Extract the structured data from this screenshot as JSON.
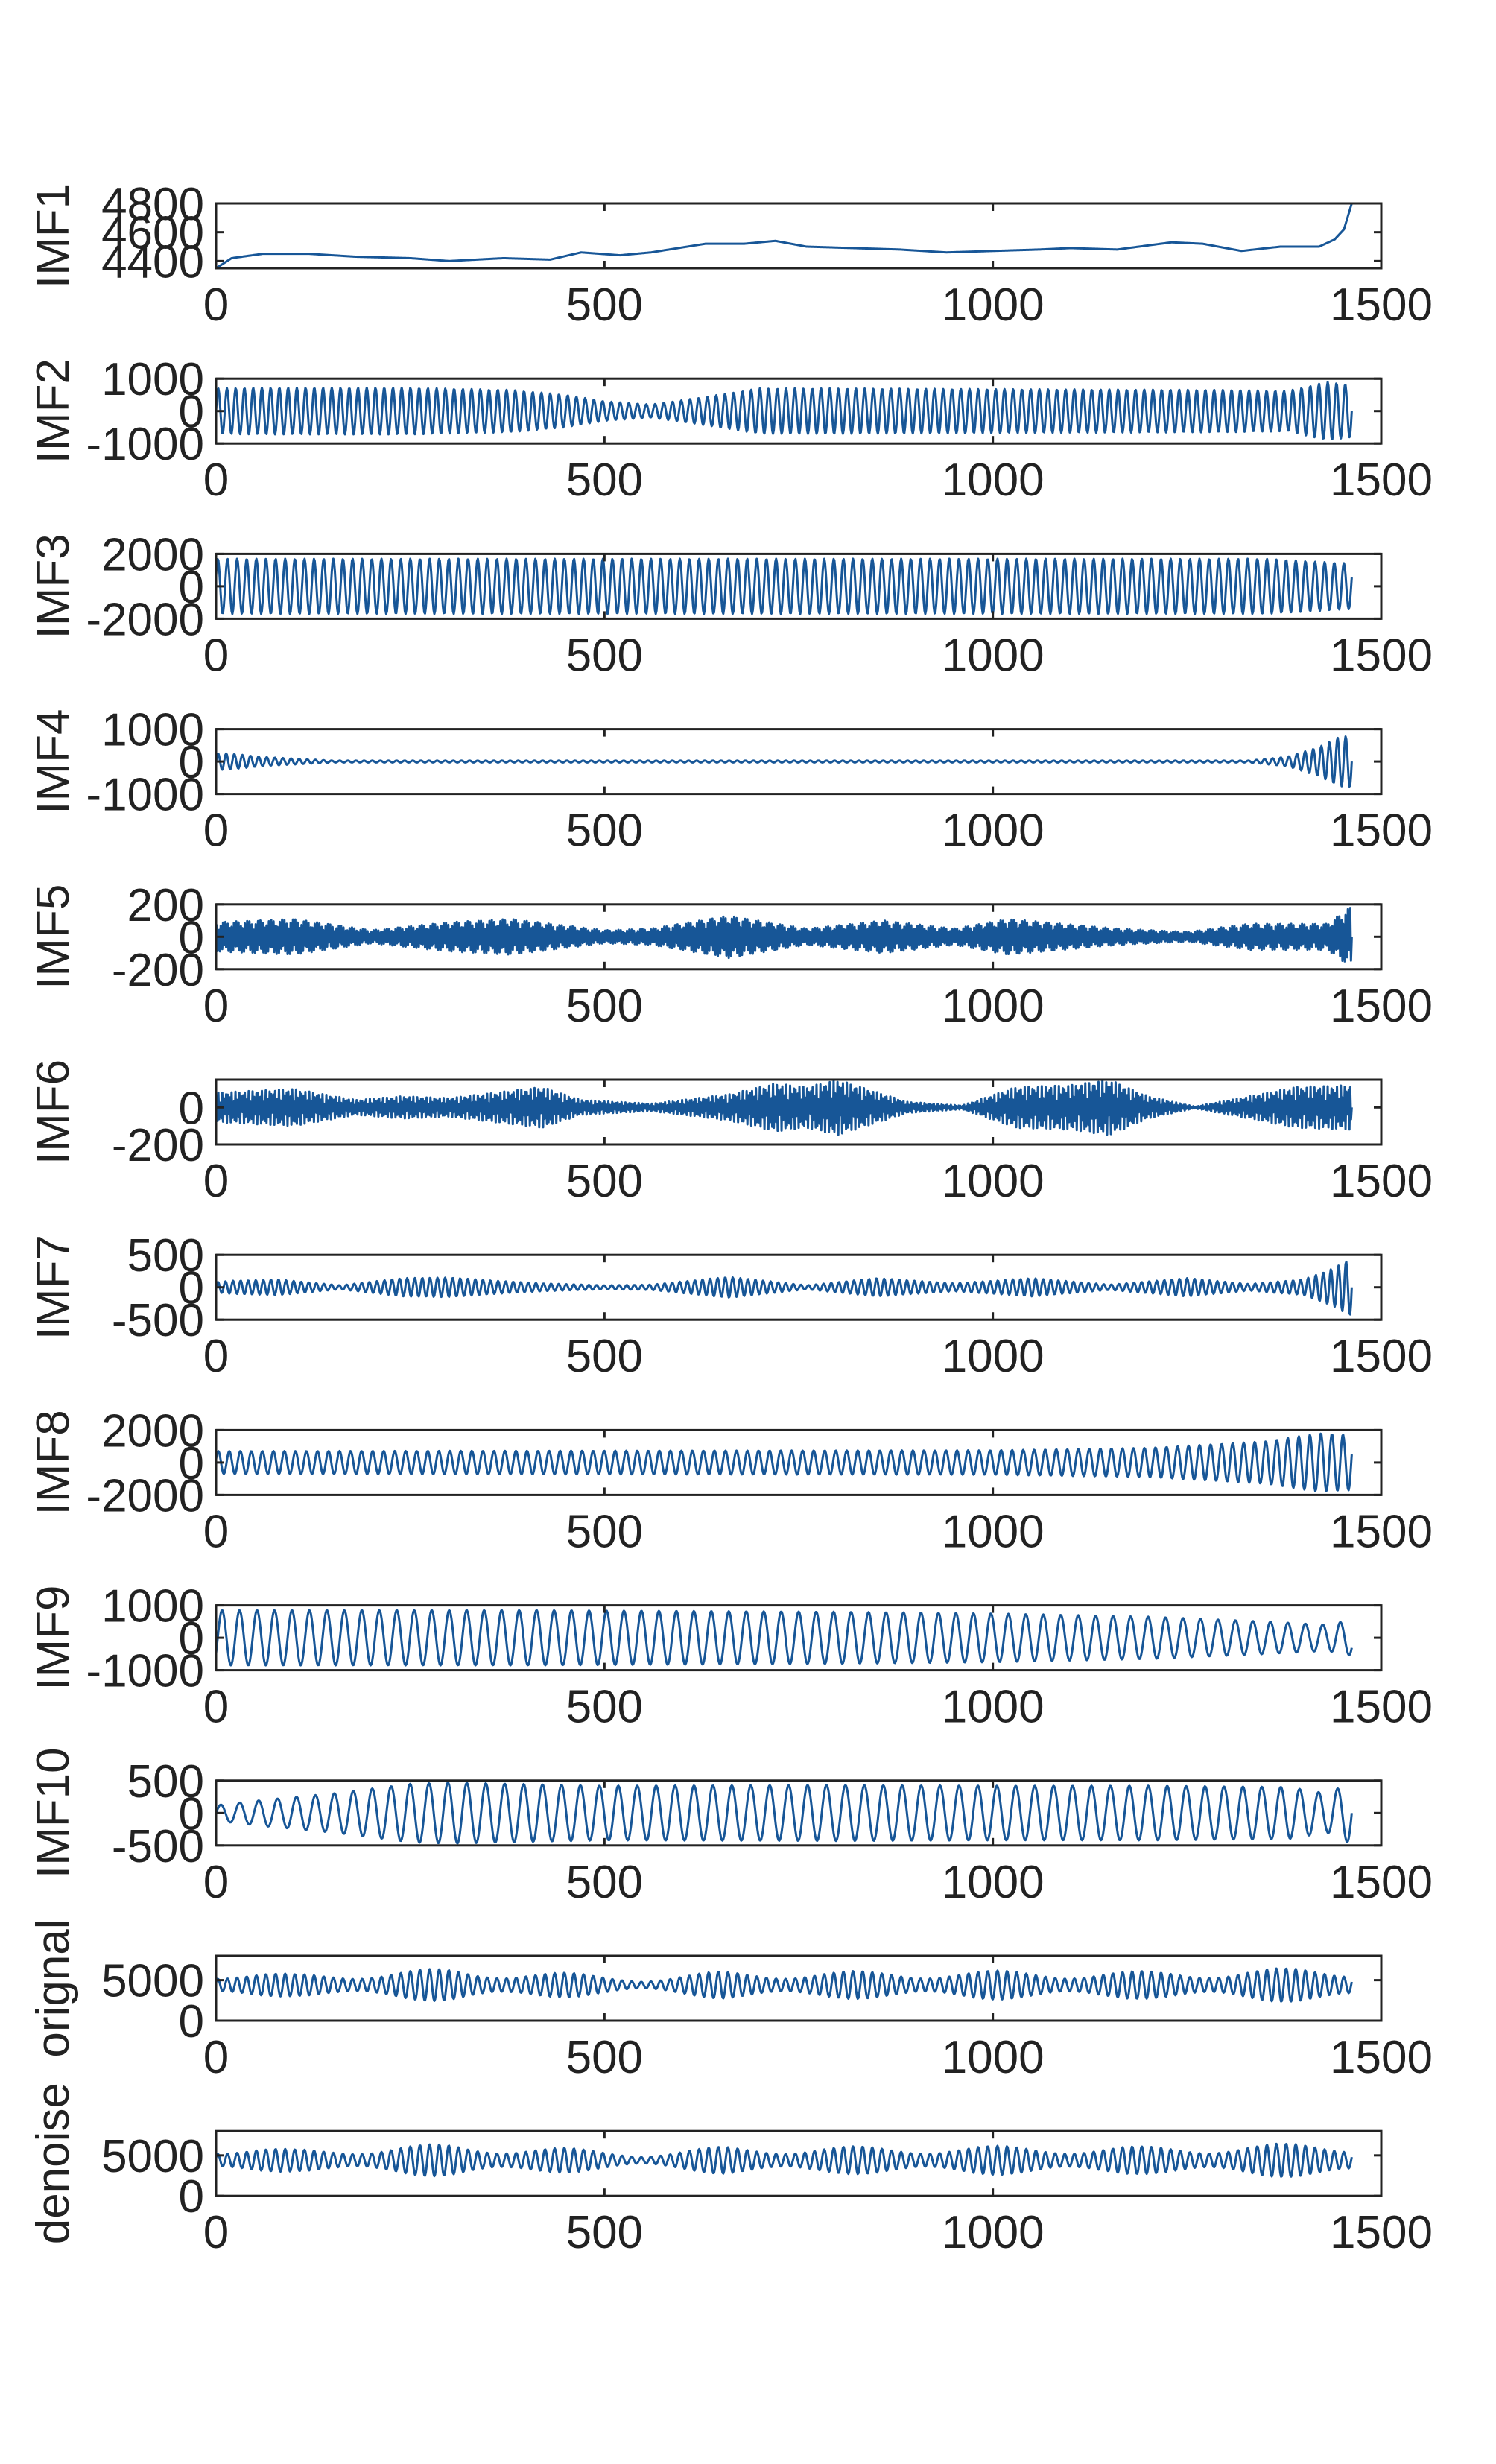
{
  "figure": {
    "line_color": "#175697",
    "axis_color": "#222222",
    "background": "#ffffff"
  },
  "chart_data": [
    {
      "type": "line",
      "ylabel": "IMF1",
      "xlim": [
        0,
        1500
      ],
      "ylim": [
        4350,
        4800
      ],
      "x_ticks": [
        "0",
        "500",
        "1000",
        "1500"
      ],
      "y_ticks": [
        "4400",
        "4600",
        "4800"
      ],
      "y_tick_values": [
        4400,
        4600,
        4800
      ],
      "series": [
        {
          "style": "trend",
          "n_points": 1463,
          "knots_x": [
            0,
            20,
            60,
            120,
            180,
            250,
            300,
            370,
            430,
            470,
            520,
            560,
            630,
            680,
            720,
            760,
            820,
            880,
            940,
            1000,
            1060,
            1100,
            1160,
            1230,
            1270,
            1320,
            1370,
            1420,
            1440,
            1452,
            1462
          ],
          "knots_y": [
            4350,
            4420,
            4450,
            4450,
            4430,
            4420,
            4400,
            4420,
            4410,
            4460,
            4440,
            4460,
            4520,
            4520,
            4540,
            4500,
            4490,
            4480,
            4460,
            4470,
            4480,
            4490,
            4480,
            4530,
            4520,
            4470,
            4500,
            4500,
            4550,
            4620,
            4800
          ]
        }
      ]
    },
    {
      "type": "line",
      "ylabel": "IMF2",
      "xlim": [
        0,
        1500
      ],
      "ylim": [
        -1000,
        1000
      ],
      "x_ticks": [
        "0",
        "500",
        "1000",
        "1500"
      ],
      "y_ticks": [
        "-1000",
        "0",
        "1000"
      ],
      "y_tick_values": [
        -1000,
        0,
        1000
      ],
      "series": [
        {
          "style": "oscillation",
          "n_points": 1463,
          "cycles": 130,
          "phase": 0,
          "envelope_x": [
            0,
            50,
            250,
            380,
            450,
            500,
            560,
            620,
            700,
            800,
            1300,
            1380,
            1430,
            1462
          ],
          "envelope_y": [
            700,
            720,
            720,
            650,
            500,
            300,
            200,
            400,
            700,
            700,
            650,
            620,
            900,
            800
          ]
        }
      ]
    },
    {
      "type": "line",
      "ylabel": "IMF3",
      "xlim": [
        0,
        1500
      ],
      "ylim": [
        -2000,
        2000
      ],
      "x_ticks": [
        "0",
        "500",
        "1000",
        "1500"
      ],
      "y_ticks": [
        "-2000",
        "0",
        "2000"
      ],
      "y_tick_values": [
        -2000,
        0,
        2000
      ],
      "series": [
        {
          "style": "oscillation",
          "n_points": 1463,
          "cycles": 118,
          "phase": 0.4,
          "envelope_x": [
            0,
            1350,
            1462
          ],
          "envelope_y": [
            1700,
            1700,
            1400
          ]
        }
      ]
    },
    {
      "type": "line",
      "ylabel": "IMF4",
      "xlim": [
        0,
        1500
      ],
      "ylim": [
        -1000,
        1000
      ],
      "x_ticks": [
        "0",
        "500",
        "1000",
        "1500"
      ],
      "y_ticks": [
        "-1000",
        "0",
        "1000"
      ],
      "y_tick_values": [
        -1000,
        0,
        1000
      ],
      "series": [
        {
          "style": "oscillation",
          "n_points": 1463,
          "cycles": 140,
          "phase": 0,
          "envelope_x": [
            0,
            15,
            60,
            150,
            1330,
            1380,
            1420,
            1445,
            1462
          ],
          "envelope_y": [
            250,
            250,
            140,
            30,
            30,
            150,
            450,
            750,
            800
          ]
        }
      ]
    },
    {
      "type": "line",
      "ylabel": "IMF5",
      "xlim": [
        0,
        1500
      ],
      "ylim": [
        -200,
        200
      ],
      "x_ticks": [
        "0",
        "500",
        "1000",
        "1500"
      ],
      "y_ticks": [
        "-200",
        "0",
        "200"
      ],
      "y_tick_values": [
        -200,
        0,
        200
      ],
      "series": [
        {
          "style": "oscillation",
          "n_points": 1463,
          "cycles": 520,
          "phase": 0,
          "envelope_x": [
            0,
            100,
            200,
            300,
            380,
            500,
            560,
            660,
            760,
            860,
            950,
            1020,
            1160,
            1250,
            1330,
            1430,
            1462
          ],
          "envelope_y": [
            90,
            110,
            40,
            90,
            110,
            40,
            50,
            130,
            50,
            100,
            50,
            110,
            50,
            30,
            80,
            80,
            190
          ]
        }
      ]
    },
    {
      "type": "line",
      "ylabel": "IMF6",
      "xlim": [
        0,
        1500
      ],
      "ylim": [
        -200,
        150
      ],
      "x_ticks": [
        "0",
        "500",
        "1000",
        "1500"
      ],
      "y_ticks": [
        "-200",
        "0"
      ],
      "y_tick_values": [
        -200,
        0
      ],
      "series": [
        {
          "style": "oscillation",
          "n_points": 1463,
          "cycles": 600,
          "phase": 0,
          "envelope_x": [
            0,
            100,
            180,
            240,
            300,
            420,
            470,
            560,
            660,
            720,
            760,
            800,
            890,
            960,
            1030,
            1100,
            1150,
            1200,
            1260,
            1330,
            1390,
            1462
          ],
          "envelope_y": [
            80,
            100,
            40,
            60,
            50,
            110,
            40,
            20,
            70,
            130,
            110,
            150,
            30,
            10,
            110,
            120,
            150,
            60,
            5,
            60,
            110,
            120
          ]
        }
      ]
    },
    {
      "type": "line",
      "ylabel": "IMF7",
      "xlim": [
        0,
        1500
      ],
      "ylim": [
        -500,
        500
      ],
      "x_ticks": [
        "0",
        "500",
        "1000",
        "1500"
      ],
      "y_ticks": [
        "-500",
        "0",
        "500"
      ],
      "y_tick_values": [
        -500,
        0,
        500
      ],
      "series": [
        {
          "style": "oscillation",
          "n_points": 1463,
          "cycles": 150,
          "phase": 0,
          "envelope_x": [
            0,
            20,
            80,
            160,
            240,
            300,
            360,
            420,
            500,
            560,
            660,
            760,
            850,
            950,
            1050,
            1150,
            1250,
            1330,
            1400,
            1440,
            1462
          ],
          "envelope_y": [
            80,
            100,
            120,
            30,
            140,
            150,
            100,
            60,
            30,
            40,
            160,
            30,
            140,
            60,
            140,
            40,
            140,
            50,
            120,
            300,
            450
          ]
        }
      ]
    },
    {
      "type": "line",
      "ylabel": "IMF8",
      "xlim": [
        0,
        1500
      ],
      "ylim": [
        -2000,
        2000
      ],
      "x_ticks": [
        "0",
        "500",
        "1000",
        "1500"
      ],
      "y_ticks": [
        "-2000",
        "0",
        "2000"
      ],
      "y_tick_values": [
        -2000,
        0,
        2000
      ],
      "series": [
        {
          "style": "oscillation",
          "n_points": 1463,
          "cycles": 103,
          "phase": 0.3,
          "envelope_x": [
            0,
            1000,
            1200,
            1350,
            1420,
            1462
          ],
          "envelope_y": [
            700,
            750,
            900,
            1300,
            1800,
            1700
          ]
        }
      ]
    },
    {
      "type": "line",
      "ylabel": "IMF9",
      "xlim": [
        0,
        1500
      ],
      "ylim": [
        -1000,
        1000
      ],
      "x_ticks": [
        "0",
        "500",
        "1000",
        "1500"
      ],
      "y_ticks": [
        "-1000",
        "0",
        "1000"
      ],
      "y_tick_values": [
        -1000,
        0,
        1000
      ],
      "series": [
        {
          "style": "oscillation",
          "n_points": 1463,
          "cycles": 65,
          "phase": -0.6,
          "envelope_x": [
            0,
            400,
            800,
            1000,
            1200,
            1350,
            1430,
            1462
          ],
          "envelope_y": [
            850,
            850,
            800,
            750,
            650,
            500,
            400,
            550
          ]
        }
      ]
    },
    {
      "type": "line",
      "ylabel": "IMF10",
      "xlim": [
        0,
        1500
      ],
      "ylim": [
        -500,
        500
      ],
      "x_ticks": [
        "0",
        "500",
        "1000",
        "1500"
      ],
      "y_ticks": [
        "-500",
        "0",
        "500"
      ],
      "y_tick_values": [
        -500,
        0,
        500
      ],
      "series": [
        {
          "style": "oscillation",
          "n_points": 1463,
          "cycles": 60,
          "phase": 0,
          "envelope_x": [
            0,
            60,
            150,
            250,
            300,
            500,
            800,
            1000,
            1200,
            1380,
            1430,
            1462
          ],
          "envelope_y": [
            120,
            200,
            300,
            450,
            470,
            420,
            430,
            420,
            420,
            400,
            300,
            480
          ]
        }
      ]
    },
    {
      "type": "line",
      "ylabel": "orignal",
      "xlim": [
        0,
        1500
      ],
      "ylim": [
        0,
        8000
      ],
      "x_ticks": [
        "0",
        "500",
        "1000",
        "1500"
      ],
      "y_ticks": [
        "0",
        "5000"
      ],
      "y_tick_values": [
        0,
        5000
      ],
      "series": [
        {
          "style": "beat",
          "n_points": 1463,
          "offset": 4400,
          "cycles": 118,
          "phase": 0.4,
          "amp": 1700,
          "mod_cycles": 8,
          "mod_depth": 0.55,
          "envelope_x": [
            0,
            100,
            300,
            450,
            550,
            650,
            800,
            1000,
            1200,
            1400,
            1462
          ],
          "envelope_y": [
            1.0,
            0.8,
            1.2,
            0.9,
            0.5,
            1.0,
            1.0,
            1.05,
            1.0,
            1.25,
            1.3
          ]
        }
      ]
    },
    {
      "type": "line",
      "ylabel": "denoise",
      "xlim": [
        0,
        1500
      ],
      "ylim": [
        0,
        8000
      ],
      "x_ticks": [
        "0",
        "500",
        "1000",
        "1500"
      ],
      "y_ticks": [
        "0",
        "5000"
      ],
      "y_tick_values": [
        0,
        5000
      ],
      "series": [
        {
          "style": "beat",
          "n_points": 1463,
          "offset": 4400,
          "cycles": 118,
          "phase": 0.4,
          "amp": 1700,
          "mod_cycles": 8,
          "mod_depth": 0.55,
          "envelope_x": [
            0,
            100,
            300,
            450,
            550,
            650,
            800,
            1000,
            1200,
            1400,
            1462
          ],
          "envelope_y": [
            1.0,
            0.8,
            1.2,
            0.9,
            0.5,
            1.0,
            1.0,
            1.05,
            1.0,
            1.25,
            1.3
          ]
        }
      ]
    }
  ]
}
